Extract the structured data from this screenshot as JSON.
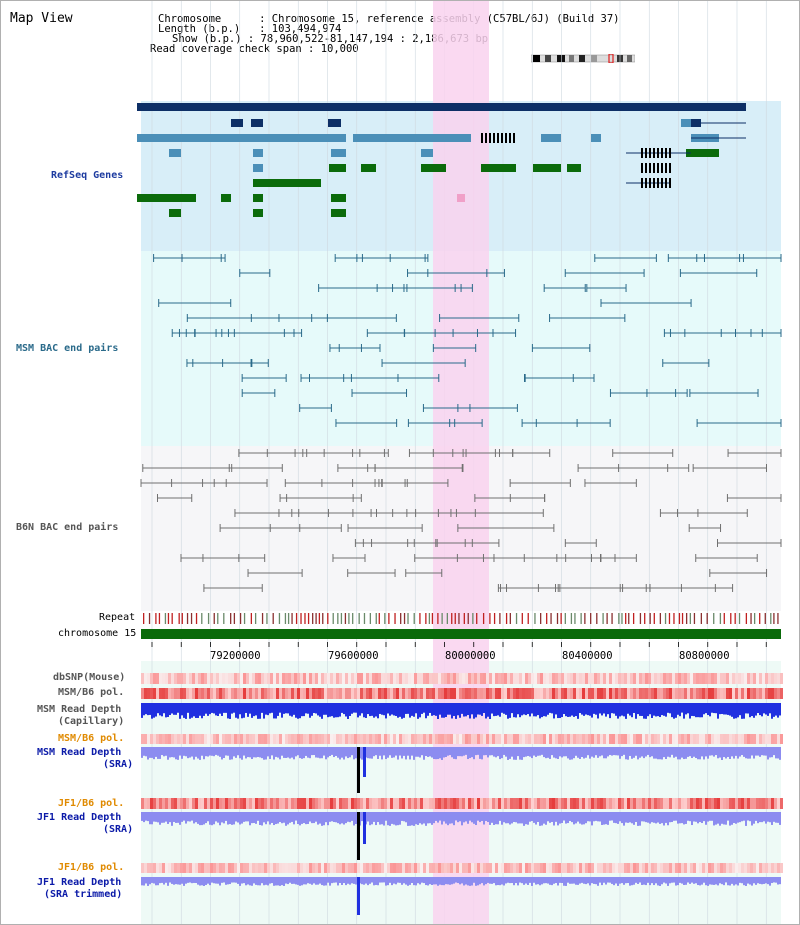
{
  "view_title": "Map View",
  "header": {
    "chromosome_key": "Chromosome",
    "chromosome_val": "Chromosome 15, reference assembly (C57BL/6J) (Build 37)",
    "length_key": "Length (b.p.)",
    "length_val": "103,494,974",
    "show_key": "Show (b.p.)",
    "show_val": "78,960,522-81,147,194 : 2,186,673 bp",
    "coverage_key": "Read coverage check span",
    "coverage_val": "10,000"
  },
  "tracks": {
    "refseq": "RefSeq Genes",
    "msm_bac": "MSM BAC end pairs",
    "b6n_bac": "B6N BAC end pairs",
    "repeat": "Repeat",
    "chromosome": "chromosome 15",
    "dbsnp": "dbSNP(Mouse)",
    "msm_b6_pol_1": "MSM/B6 pol.",
    "msm_read_depth_cap_1": "MSM Read Depth",
    "msm_read_depth_cap_2": "(Capillary)",
    "msm_b6_pol_2": "MSM/B6 pol.",
    "msm_read_depth_sra_1": "MSM Read Depth",
    "msm_read_depth_sra_2": "(SRA)",
    "jf1_b6_pol_1": "JF1/B6 pol.",
    "jf1_read_depth_sra_1": "JF1 Read Depth",
    "jf1_read_depth_sra_2": "(SRA)",
    "jf1_b6_pol_2": "JF1/B6 pol.",
    "jf1_read_depth_trim_1": "JF1 Read Depth",
    "jf1_read_depth_trim_2": "(SRA trimmed)"
  },
  "positions": [
    "79200000",
    "79600000",
    "80000000",
    "80400000",
    "80800000"
  ],
  "colors": {
    "refseq_bg": "#d8eef8",
    "bac_bg": "#e6fafa",
    "b6n_bg": "#f6f6f8",
    "highlight": "#f9d2ee",
    "gene_dark": "#0d2f66",
    "gene_mid": "#4b8fb8",
    "gene_green": "#0b6b0b",
    "chromosome_bar": "#0a6a0a",
    "depth_blue": "#2030e0",
    "depth_light": "#8c8cf0"
  }
}
